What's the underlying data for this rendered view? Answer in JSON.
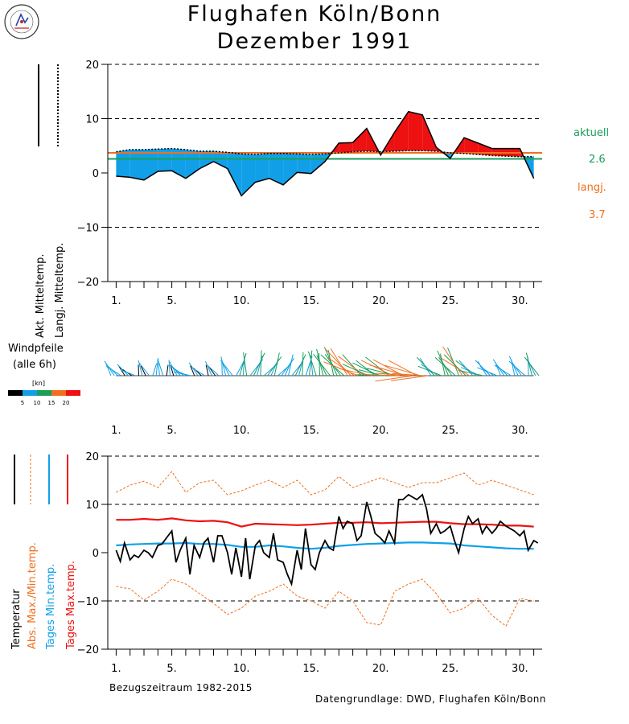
{
  "header": {
    "title_line1": "Flughafen Köln/Bonn",
    "title_line2": "Dezember  1991"
  },
  "top_panel": {
    "ylabel_actual": "Akt. Mitteltemp.",
    "ylabel_longterm": "Langj. Mitteltemp.",
    "legend_aktuell_label": "aktuell",
    "legend_aktuell_value": "2.6",
    "legend_langj_label": "langj.",
    "legend_langj_value": "3.7",
    "colors": {
      "above": "#ee1111",
      "below": "#11a0e8",
      "actual_mean": "#1a9e5a",
      "longterm_mean": "#f07020"
    }
  },
  "wind_panel": {
    "title_line1": "Windpfeile",
    "title_line2": "(alle 6h)",
    "scale_unit": "[kn]",
    "scale_ticks": [
      "5",
      "10",
      "15",
      "20"
    ],
    "scale_colors": [
      "#000000",
      "#11a0e8",
      "#1a9e5a",
      "#f07020",
      "#ee1111"
    ]
  },
  "bottom_panel": {
    "ylabel_temperatur": "Temperatur",
    "ylabel_absmaxmin": "Abs. Max./Min.temp.",
    "ylabel_tagesmin": "Tages Min.temp.",
    "ylabel_tagesmax": "Tages Max.temp.",
    "bezugszeitraum": "Bezugszeitraum 1982-2015",
    "colors": {
      "temp": "#000000",
      "absmaxmin": "#f07020",
      "tagesmin": "#11a0e8",
      "tagesmax": "#ee1111"
    }
  },
  "footer": {
    "source": "Datengrundlage: DWD, Flughafen Köln/Bonn"
  },
  "chart_data": [
    {
      "type": "area",
      "title": "Flughafen Köln/Bonn Dezember 1991",
      "xlabel": "",
      "ylabel": "Akt. Mitteltemp. / Langj. Mitteltemp.",
      "x_tick_labels": [
        "1.",
        "5.",
        "10.",
        "15.",
        "20.",
        "25.",
        "30."
      ],
      "x_tick_positions": [
        1,
        5,
        10,
        15,
        20,
        25,
        30
      ],
      "y_tick_labels": [
        "20",
        "10",
        "0",
        "−10",
        "−20"
      ],
      "ylim": [
        -20,
        20
      ],
      "xlim": [
        0.4,
        31.6
      ],
      "grid": "horizontal dashed",
      "days": [
        1,
        2,
        3,
        4,
        5,
        6,
        7,
        8,
        9,
        10,
        11,
        12,
        13,
        14,
        15,
        16,
        17,
        18,
        19,
        20,
        21,
        22,
        23,
        24,
        25,
        26,
        27,
        28,
        29,
        30,
        31
      ],
      "series": [
        {
          "name": "Akt. Mitteltemp.",
          "values": [
            -0.6,
            -0.8,
            -1.3,
            0.3,
            0.4,
            -1.0,
            0.8,
            2.1,
            0.8,
            -4.2,
            -1.7,
            -1.0,
            -2.2,
            0.1,
            -0.1,
            2.1,
            5.5,
            5.6,
            8.2,
            3.3,
            7.5,
            11.3,
            10.7,
            4.7,
            2.7,
            6.5,
            5.5,
            4.5,
            4.5,
            4.5,
            -1.0
          ]
        },
        {
          "name": "Langj. Mitteltemp.",
          "values": [
            3.9,
            4.3,
            4.3,
            4.4,
            4.5,
            4.3,
            4.0,
            4.0,
            3.8,
            3.5,
            3.4,
            3.6,
            3.6,
            3.5,
            3.4,
            3.5,
            3.7,
            3.9,
            4.0,
            3.9,
            4.0,
            4.1,
            4.1,
            4.0,
            3.7,
            3.6,
            3.4,
            3.2,
            3.1,
            3.0,
            3.0
          ]
        }
      ],
      "mean_lines": {
        "aktuell": 2.6,
        "langj": 3.7
      }
    },
    {
      "type": "line",
      "title": "Windpfeile (alle 6h)",
      "xlabel": "",
      "ylabel": "",
      "x_tick_labels": [
        "1.",
        "5.",
        "10.",
        "15.",
        "20.",
        "25.",
        "30."
      ],
      "x_tick_positions": [
        1,
        5,
        10,
        15,
        20,
        25,
        30
      ],
      "xlim": [
        0.4,
        31.6
      ],
      "scale_kn": [
        5,
        10,
        15,
        20
      ],
      "daily_mean_speed_kn": [
        6,
        5,
        5,
        6,
        5,
        6,
        5,
        5,
        7,
        9,
        10,
        9,
        8,
        9,
        10,
        11,
        13,
        16,
        14,
        12,
        15,
        17,
        16,
        10,
        11,
        15,
        10,
        8,
        7,
        8,
        9
      ],
      "daily_mean_direction_deg": [
        220,
        230,
        200,
        180,
        190,
        240,
        220,
        210,
        200,
        170,
        160,
        150,
        150,
        160,
        180,
        200,
        210,
        230,
        240,
        250,
        250,
        260,
        260,
        230,
        210,
        220,
        240,
        230,
        220,
        210,
        200
      ]
    },
    {
      "type": "line",
      "title": "",
      "xlabel": "Bezugszeitraum 1982-2015",
      "ylabel": "Temperatur",
      "x_tick_labels": [
        "1.",
        "5.",
        "10.",
        "15.",
        "20.",
        "25.",
        "30."
      ],
      "x_tick_positions": [
        1,
        5,
        10,
        15,
        20,
        25,
        30
      ],
      "y_tick_labels": [
        "20",
        "10",
        "0",
        "−10",
        "−20"
      ],
      "ylim": [
        -20,
        20
      ],
      "xlim": [
        0.4,
        31.6
      ],
      "grid": "horizontal dashed",
      "days": [
        1,
        2,
        3,
        4,
        5,
        6,
        7,
        8,
        9,
        10,
        11,
        12,
        13,
        14,
        15,
        16,
        17,
        18,
        19,
        20,
        21,
        22,
        23,
        24,
        25,
        26,
        27,
        28,
        29,
        30,
        31
      ],
      "series": [
        {
          "name": "Abs. Max.",
          "values": [
            12.5,
            14.0,
            14.8,
            13.5,
            16.8,
            12.5,
            14.5,
            15.0,
            12.0,
            12.8,
            14.0,
            15.0,
            13.5,
            15.0,
            12.0,
            13.0,
            15.8,
            13.5,
            14.5,
            15.5,
            14.5,
            13.5,
            14.5,
            14.5,
            15.5,
            16.5,
            14.0,
            15.0,
            14.0,
            13.0,
            12.0
          ]
        },
        {
          "name": "Abs. Min.",
          "values": [
            -7.0,
            -7.5,
            -9.8,
            -8.0,
            -5.5,
            -6.5,
            -8.5,
            -10.5,
            -12.8,
            -11.5,
            -9.0,
            -8.0,
            -6.5,
            -9.0,
            -10.0,
            -11.5,
            -8.0,
            -10.0,
            -14.5,
            -15.0,
            -8.0,
            -6.5,
            -5.5,
            -8.5,
            -12.5,
            -11.5,
            -9.5,
            -13.0,
            -15.2,
            -9.5,
            -10.0
          ]
        },
        {
          "name": "Tages Min.temp.",
          "values": [
            1.5,
            1.7,
            1.8,
            1.9,
            1.9,
            2.0,
            1.8,
            1.8,
            1.6,
            1.2,
            1.2,
            1.5,
            1.3,
            1.0,
            0.8,
            1.0,
            1.4,
            1.6,
            1.8,
            1.9,
            2.0,
            2.1,
            2.1,
            2.0,
            1.9,
            1.5,
            1.3,
            1.1,
            0.9,
            0.8,
            0.8
          ]
        },
        {
          "name": "Tages Max.temp.",
          "values": [
            6.8,
            6.8,
            7.0,
            6.8,
            7.1,
            6.7,
            6.5,
            6.6,
            6.3,
            5.4,
            6.0,
            5.9,
            5.8,
            5.7,
            5.8,
            6.0,
            6.2,
            6.2,
            6.3,
            6.1,
            6.2,
            6.3,
            6.4,
            6.4,
            6.1,
            5.9,
            5.9,
            5.8,
            5.6,
            5.6,
            5.4
          ]
        },
        {
          "name": "Temperatur",
          "x": [
            1.0,
            1.3,
            1.6,
            2.0,
            2.3,
            2.6,
            3.0,
            3.3,
            3.6,
            4.0,
            4.3,
            4.6,
            5.0,
            5.3,
            5.6,
            6.0,
            6.3,
            6.6,
            7.0,
            7.3,
            7.6,
            8.0,
            8.3,
            8.6,
            9.0,
            9.3,
            9.6,
            10.0,
            10.3,
            10.6,
            11.0,
            11.3,
            11.6,
            12.0,
            12.3,
            12.6,
            13.0,
            13.3,
            13.6,
            14.0,
            14.3,
            14.6,
            15.0,
            15.3,
            15.6,
            16.0,
            16.3,
            16.6,
            17.0,
            17.3,
            17.6,
            18.0,
            18.3,
            18.6,
            19.0,
            19.3,
            19.6,
            20.0,
            20.3,
            20.6,
            21.0,
            21.3,
            21.6,
            22.0,
            22.3,
            22.6,
            23.0,
            23.3,
            23.6,
            24.0,
            24.3,
            24.6,
            25.0,
            25.3,
            25.6,
            26.0,
            26.3,
            26.6,
            27.0,
            27.3,
            27.6,
            28.0,
            28.3,
            28.6,
            29.0,
            29.3,
            29.6,
            30.0,
            30.3,
            30.6,
            31.0,
            31.3
          ],
          "values": [
            0.5,
            -1.8,
            2.0,
            -1.5,
            -0.5,
            -1.0,
            0.5,
            0.0,
            -1.0,
            1.5,
            1.8,
            3.0,
            4.5,
            -2.0,
            0.5,
            3.0,
            -4.5,
            1.5,
            -1.0,
            2.0,
            3.0,
            -2.0,
            3.5,
            3.5,
            0.0,
            -4.5,
            1.0,
            -5.0,
            3.0,
            -5.5,
            1.5,
            2.5,
            0.0,
            -1.0,
            4.0,
            -1.5,
            -2.0,
            -4.5,
            -6.5,
            0.5,
            -3.5,
            5.0,
            -2.5,
            -3.5,
            0.0,
            2.5,
            1.0,
            0.5,
            7.5,
            5.0,
            6.5,
            6.0,
            2.5,
            3.5,
            10.5,
            7.5,
            4.0,
            3.0,
            2.0,
            4.5,
            2.0,
            11.0,
            11.0,
            12.0,
            11.5,
            11.0,
            12.0,
            9.0,
            4.0,
            6.0,
            4.0,
            4.5,
            5.5,
            2.5,
            0.0,
            5.0,
            7.5,
            6.0,
            7.0,
            4.0,
            5.5,
            4.0,
            5.0,
            6.5,
            5.5,
            5.0,
            4.5,
            3.5,
            4.5,
            0.5,
            2.5,
            2.0
          ]
        }
      ]
    }
  ]
}
